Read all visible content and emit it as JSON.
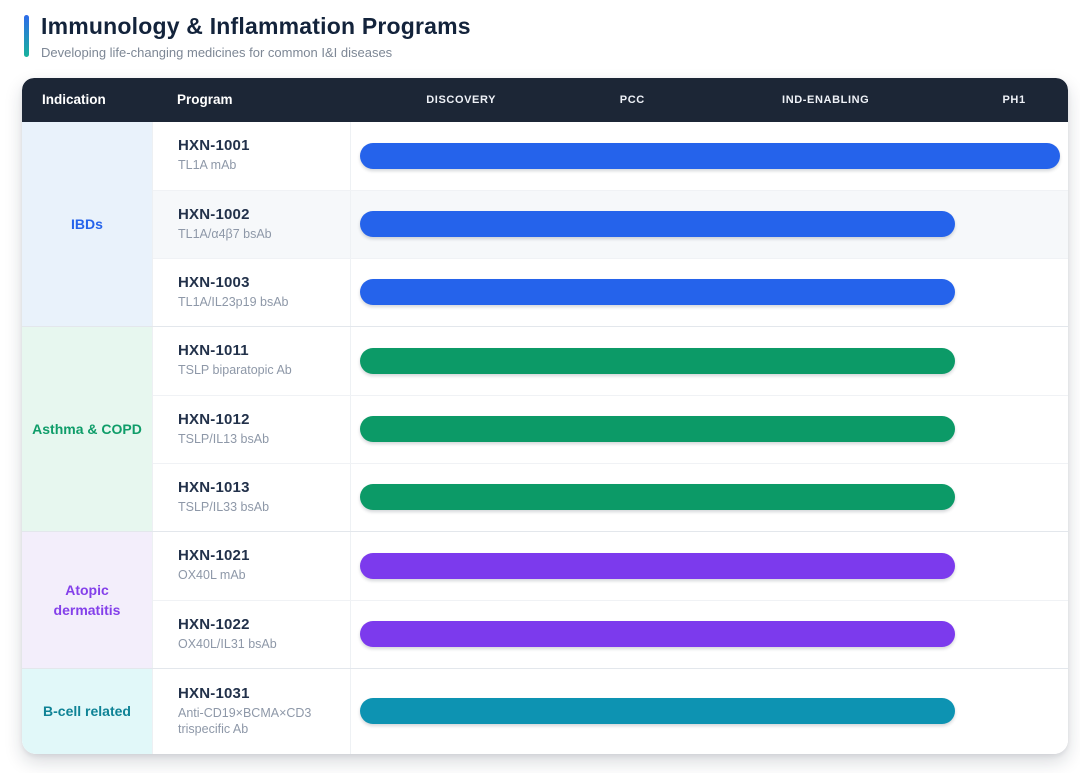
{
  "header": {
    "title": "Immunology & Inflammation Programs",
    "subtitle": "Developing life-changing medicines for common I&I diseases",
    "accent_gradient": [
      "#2e6bea",
      "#17b29c"
    ]
  },
  "table": {
    "indication_label": "Indication",
    "program_label": "Program",
    "header_bg": "#1c2636",
    "phases": [
      "DISCOVERY",
      "PCC",
      "IND-ENABLING",
      "PH1"
    ],
    "groups": [
      {
        "indication": "IBDs",
        "text_color": "#2563eb",
        "cell_bg": "#e9f2fb",
        "bar_color": "#2563eb",
        "programs": [
          {
            "name": "HXN-1001",
            "target": "TL1A mAb",
            "progress_pct": 100,
            "row_bg": "#ffffff"
          },
          {
            "name": "HXN-1002",
            "target": "TL1A/α4β7 bsAb",
            "progress_pct": 85,
            "row_bg": "#f6f8fa"
          },
          {
            "name": "HXN-1003",
            "target": "TL1A/IL23p19 bsAb",
            "progress_pct": 85,
            "row_bg": "#ffffff"
          }
        ]
      },
      {
        "indication": "Asthma & COPD",
        "text_color": "#0f9d69",
        "cell_bg": "#e7f7ef",
        "bar_color": "#0c9a67",
        "programs": [
          {
            "name": "HXN-1011",
            "target": "TSLP biparatopic Ab",
            "progress_pct": 85,
            "row_bg": "#ffffff"
          },
          {
            "name": "HXN-1012",
            "target": "TSLP/IL13 bsAb",
            "progress_pct": 85,
            "row_bg": "#ffffff"
          },
          {
            "name": "HXN-1013",
            "target": "TSLP/IL33 bsAb",
            "progress_pct": 85,
            "row_bg": "#ffffff"
          }
        ]
      },
      {
        "indication": "Atopic dermatitis",
        "text_color": "#8440ea",
        "cell_bg": "#f3eefb",
        "bar_color": "#7c3aed",
        "programs": [
          {
            "name": "HXN-1021",
            "target": "OX40L mAb",
            "progress_pct": 85,
            "row_bg": "#ffffff"
          },
          {
            "name": "HXN-1022",
            "target": "OX40L/IL31 bsAb",
            "progress_pct": 85,
            "row_bg": "#ffffff"
          }
        ]
      },
      {
        "indication": "B-cell related",
        "text_color": "#0f8396",
        "cell_bg": "#e1f8f9",
        "bar_color": "#0d93b2",
        "programs": [
          {
            "name": "HXN-1031",
            "target": "Anti-CD19×BCMA×CD3 trispecific Ab",
            "progress_pct": 85,
            "row_bg": "#ffffff",
            "min_height": 85
          }
        ]
      }
    ]
  },
  "chart_data": {
    "type": "bar",
    "orientation": "horizontal",
    "title": "Immunology & Inflammation Programs",
    "subtitle": "Developing life-changing medicines for common I&I diseases",
    "x_axis_stages": [
      "DISCOVERY",
      "PCC",
      "IND-ENABLING",
      "PH1"
    ],
    "bars": [
      {
        "indication": "IBDs",
        "program": "HXN-1001",
        "modality": "TL1A mAb",
        "stage_reached": "PH1",
        "progress_pct": 100,
        "color": "#2563eb"
      },
      {
        "indication": "IBDs",
        "program": "HXN-1002",
        "modality": "TL1A/α4β7 bsAb",
        "stage_reached": "IND-ENABLING",
        "progress_pct": 85,
        "color": "#2563eb"
      },
      {
        "indication": "IBDs",
        "program": "HXN-1003",
        "modality": "TL1A/IL23p19 bsAb",
        "stage_reached": "IND-ENABLING",
        "progress_pct": 85,
        "color": "#2563eb"
      },
      {
        "indication": "Asthma & COPD",
        "program": "HXN-1011",
        "modality": "TSLP biparatopic Ab",
        "stage_reached": "IND-ENABLING",
        "progress_pct": 85,
        "color": "#0c9a67"
      },
      {
        "indication": "Asthma & COPD",
        "program": "HXN-1012",
        "modality": "TSLP/IL13 bsAb",
        "stage_reached": "IND-ENABLING",
        "progress_pct": 85,
        "color": "#0c9a67"
      },
      {
        "indication": "Asthma & COPD",
        "program": "HXN-1013",
        "modality": "TSLP/IL33 bsAb",
        "stage_reached": "IND-ENABLING",
        "progress_pct": 85,
        "color": "#0c9a67"
      },
      {
        "indication": "Atopic dermatitis",
        "program": "HXN-1021",
        "modality": "OX40L mAb",
        "stage_reached": "IND-ENABLING",
        "progress_pct": 85,
        "color": "#7c3aed"
      },
      {
        "indication": "Atopic dermatitis",
        "program": "HXN-1022",
        "modality": "OX40L/IL31 bsAb",
        "stage_reached": "IND-ENABLING",
        "progress_pct": 85,
        "color": "#7c3aed"
      },
      {
        "indication": "B-cell related",
        "program": "HXN-1031",
        "modality": "Anti-CD19×BCMA×CD3 trispecific Ab",
        "stage_reached": "IND-ENABLING",
        "progress_pct": 85,
        "color": "#0d93b2"
      }
    ]
  }
}
